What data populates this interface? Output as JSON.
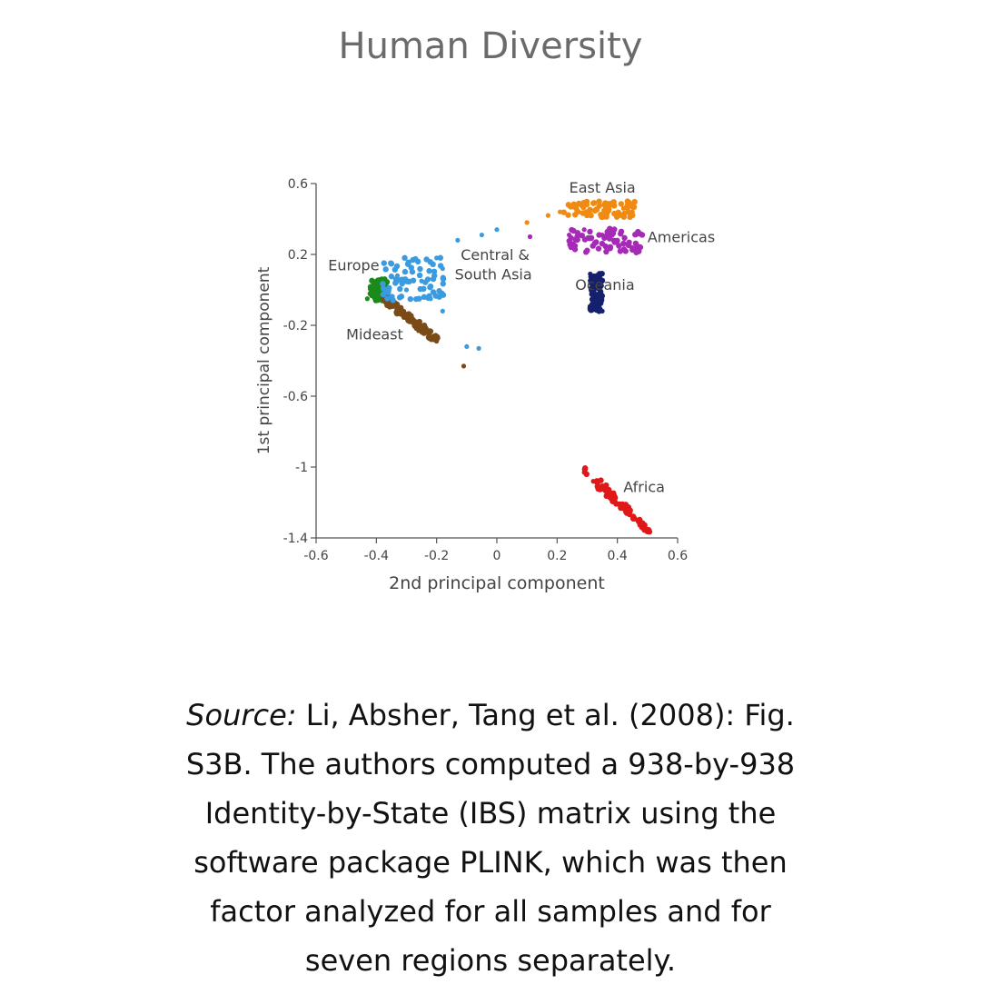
{
  "title": "Human Diversity",
  "caption": {
    "source_label": "Source:",
    "text": " Li, Absher, Tang et al. (2008): Fig. S3B. The authors computed a 938-by-938 Identity-by-State (IBS) matrix using the software package PLINK, which was then factor analyzed for all samples and for seven regions separately."
  },
  "chart_data": {
    "type": "scatter",
    "xlabel": "2nd principal component",
    "ylabel": "1st principal component",
    "xlim": [
      -0.6,
      0.6
    ],
    "ylim": [
      -1.4,
      0.6
    ],
    "xticks": [
      "-0.6",
      "-0.4",
      "-0.2",
      "0",
      "0.2",
      "0.4",
      "0.6"
    ],
    "yticks": [
      "0.6",
      "0.2",
      "-0.2",
      "-0.6",
      "-1",
      "-1.4"
    ],
    "series": [
      {
        "name": "Europe",
        "color": "#1a8a1a",
        "cluster": {
          "x": [
            -0.42,
            -0.36
          ],
          "y": [
            -0.06,
            0.06
          ]
        },
        "points": [
          [
            -0.43,
            -0.05
          ],
          [
            -0.42,
            -0.02
          ],
          [
            -0.4,
            0.02
          ],
          [
            -0.38,
            0.05
          ],
          [
            -0.37,
            0.04
          ],
          [
            -0.41,
            0.0
          ],
          [
            -0.39,
            -0.03
          ],
          [
            -0.36,
            0.01
          ]
        ]
      },
      {
        "name": "Mideast",
        "color": "#7a4a18",
        "cluster": {
          "x": [
            -0.38,
            -0.2
          ],
          "y": [
            -0.28,
            -0.04
          ]
        },
        "points": [
          [
            -0.38,
            -0.04
          ],
          [
            -0.35,
            -0.08
          ],
          [
            -0.32,
            -0.13
          ],
          [
            -0.29,
            -0.18
          ],
          [
            -0.26,
            -0.23
          ],
          [
            -0.22,
            -0.27
          ],
          [
            -0.2,
            -0.29
          ],
          [
            -0.11,
            -0.43
          ]
        ]
      },
      {
        "name": "Central & South Asia",
        "color": "#3a9be0",
        "cluster": {
          "x": [
            -0.38,
            -0.17
          ],
          "y": [
            -0.06,
            0.19
          ]
        },
        "points": [
          [
            -0.2,
            0.18
          ],
          [
            -0.18,
            0.12
          ],
          [
            -0.25,
            0.05
          ],
          [
            -0.3,
            0.0
          ],
          [
            -0.33,
            0.08
          ],
          [
            -0.22,
            -0.05
          ],
          [
            -0.18,
            -0.12
          ],
          [
            -0.13,
            0.28
          ],
          [
            -0.05,
            0.31
          ],
          [
            0.0,
            0.34
          ],
          [
            -0.1,
            -0.32
          ],
          [
            -0.06,
            -0.33
          ]
        ]
      },
      {
        "name": "East Asia",
        "color": "#f08a10",
        "cluster": {
          "x": [
            0.22,
            0.46
          ],
          "y": [
            0.41,
            0.5
          ]
        },
        "points": [
          [
            0.1,
            0.38
          ],
          [
            0.17,
            0.42
          ],
          [
            0.21,
            0.44
          ],
          [
            0.3,
            0.48
          ],
          [
            0.36,
            0.47
          ],
          [
            0.42,
            0.46
          ],
          [
            0.45,
            0.44
          ]
        ]
      },
      {
        "name": "Americas",
        "color": "#a52ab5",
        "cluster": {
          "x": [
            0.24,
            0.49
          ],
          "y": [
            0.21,
            0.35
          ]
        },
        "points": [
          [
            0.11,
            0.3
          ],
          [
            0.24,
            0.31
          ],
          [
            0.29,
            0.34
          ],
          [
            0.35,
            0.31
          ],
          [
            0.4,
            0.28
          ],
          [
            0.44,
            0.25
          ],
          [
            0.47,
            0.22
          ]
        ]
      },
      {
        "name": "Oceania",
        "color": "#15206e",
        "cluster": {
          "x": [
            0.31,
            0.35
          ],
          "y": [
            -0.12,
            0.1
          ]
        },
        "points": [
          [
            0.31,
            0.09
          ],
          [
            0.32,
            0.06
          ],
          [
            0.33,
            0.04
          ],
          [
            0.33,
            -0.08
          ],
          [
            0.34,
            -0.1
          ],
          [
            0.35,
            -0.12
          ]
        ]
      },
      {
        "name": "Africa",
        "color": "#e01818",
        "cluster": {
          "x": [
            0.29,
            0.51
          ],
          "y": [
            -1.37,
            -1.02
          ]
        },
        "points": [
          [
            0.29,
            -1.03
          ],
          [
            0.32,
            -1.08
          ],
          [
            0.35,
            -1.12
          ],
          [
            0.38,
            -1.17
          ],
          [
            0.41,
            -1.22
          ],
          [
            0.44,
            -1.27
          ],
          [
            0.47,
            -1.31
          ],
          [
            0.5,
            -1.35
          ]
        ]
      }
    ],
    "annotations": [
      {
        "text": "East Asia",
        "x": 0.24,
        "y": 0.55
      },
      {
        "text": "Americas",
        "x": 0.5,
        "y": 0.27
      },
      {
        "text": "Central &",
        "x": -0.12,
        "y": 0.17
      },
      {
        "text": "South Asia",
        "x": -0.14,
        "y": 0.06
      },
      {
        "text": "Oceania",
        "x": 0.26,
        "y": -0.0
      },
      {
        "text": "Europe",
        "x": -0.56,
        "y": 0.11
      },
      {
        "text": "Mideast",
        "x": -0.5,
        "y": -0.28
      },
      {
        "text": "Africa",
        "x": 0.42,
        "y": -1.14
      }
    ]
  }
}
